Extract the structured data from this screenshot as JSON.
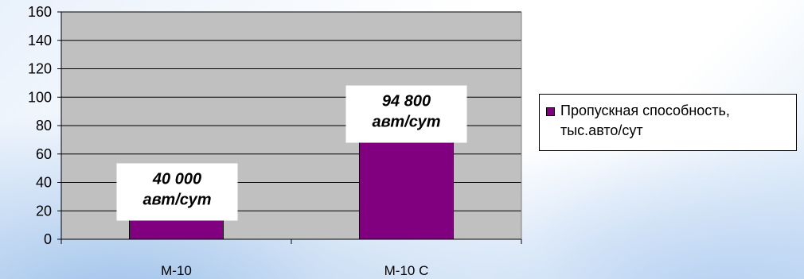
{
  "colors": {
    "bar": "#800080",
    "plot_bg": "#c0c0c0",
    "grid": "#000000"
  },
  "legend": {
    "label": "Пропускная способность, тыс.авто/сут"
  },
  "chart_data": {
    "type": "bar",
    "categories": [
      "М-10",
      "М-10 С"
    ],
    "series": [
      {
        "name": "Пропускная способность, тыс.авто/сут",
        "values": [
          40,
          94.8
        ]
      }
    ],
    "ylim": [
      0,
      160
    ],
    "yticks": [
      0,
      20,
      40,
      60,
      80,
      100,
      120,
      140,
      160
    ],
    "grid": true,
    "legend_position": "right",
    "annotations": [
      {
        "category": "М-10",
        "lines": [
          "40 000",
          "авт/сут"
        ]
      },
      {
        "category": "М-10 С",
        "lines": [
          "94 800",
          "авт/сут"
        ]
      }
    ]
  }
}
